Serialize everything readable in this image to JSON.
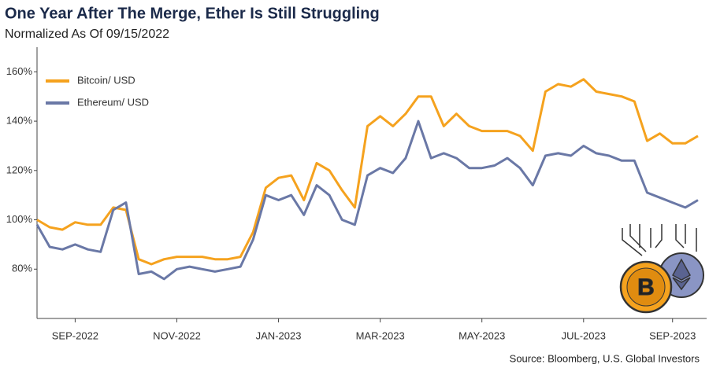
{
  "chart_data": {
    "type": "line",
    "title": "One Year After The Merge, Ether Is Still Struggling",
    "subtitle": "Normalized As Of 09/15/2022",
    "source": "Source: Bloomberg, U.S. Global Investors",
    "categories": [
      null,
      null,
      null,
      "SEP-2022",
      null,
      null,
      null,
      null,
      null,
      null,
      null,
      "NOV-2022",
      null,
      null,
      null,
      null,
      null,
      null,
      null,
      "JAN-2023",
      null,
      null,
      null,
      null,
      null,
      null,
      null,
      "MAR-2023",
      null,
      null,
      null,
      null,
      null,
      null,
      null,
      "MAY-2023",
      null,
      null,
      null,
      null,
      null,
      null,
      null,
      "JUL-2023",
      null,
      null,
      null,
      null,
      null,
      null,
      "SEP-2023",
      null,
      null
    ],
    "series": [
      {
        "name": "Bitcoin/ USD",
        "color": "#f5a21e",
        "values": [
          100,
          97,
          96,
          99,
          98,
          98,
          105,
          104,
          84,
          82,
          84,
          85,
          85,
          85,
          84,
          84,
          85,
          95,
          113,
          117,
          118,
          108,
          123,
          120,
          112,
          105,
          138,
          142,
          138,
          143,
          150,
          150,
          138,
          143,
          138,
          136,
          136,
          136,
          134,
          128,
          152,
          155,
          154,
          157,
          152,
          151,
          150,
          148,
          132,
          135,
          131,
          131,
          134
        ]
      },
      {
        "name": "Ethereum/ USD",
        "color": "#6a78a6",
        "values": [
          98,
          89,
          88,
          90,
          88,
          87,
          104,
          107,
          78,
          79,
          76,
          80,
          81,
          80,
          79,
          80,
          81,
          92,
          110,
          108,
          110,
          102,
          114,
          110,
          100,
          98,
          118,
          121,
          119,
          125,
          140,
          125,
          127,
          125,
          121,
          121,
          122,
          125,
          121,
          114,
          126,
          127,
          126,
          130,
          127,
          126,
          124,
          124,
          111,
          109,
          107,
          105,
          108
        ]
      }
    ],
    "ylim": [
      60,
      170
    ],
    "yticks": [
      {
        "value": 80,
        "label": "80%"
      },
      {
        "value": 100,
        "label": "100%"
      },
      {
        "value": 120,
        "label": "120%"
      },
      {
        "value": 140,
        "label": "140%"
      },
      {
        "value": 160,
        "label": "160%"
      }
    ],
    "grid": false,
    "legend": "top-left"
  }
}
